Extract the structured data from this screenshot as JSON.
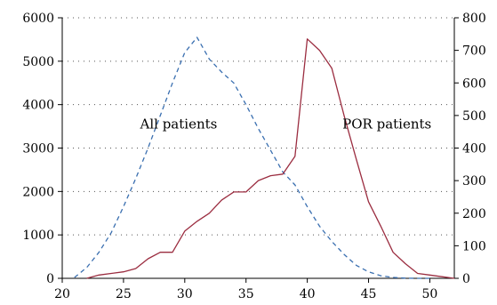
{
  "chart_data": {
    "type": "line",
    "xlim": [
      20,
      52
    ],
    "xticks": [
      20,
      25,
      30,
      35,
      40,
      45,
      50
    ],
    "left_axis": {
      "ylim": [
        0,
        6000
      ],
      "ticks": [
        0,
        1000,
        2000,
        3000,
        4000,
        5000,
        6000
      ]
    },
    "right_axis": {
      "ylim": [
        0,
        800
      ],
      "ticks": [
        0,
        100,
        200,
        300,
        400,
        500,
        600,
        700,
        800
      ]
    },
    "grid": "horizontal dotted",
    "series": [
      {
        "name": "All patients",
        "axis": "left",
        "style": "dashed",
        "color": "#3a6fb0",
        "x": [
          21,
          22,
          23,
          24,
          25,
          26,
          27,
          28,
          29,
          30,
          31,
          32,
          33,
          34,
          35,
          36,
          37,
          38,
          39,
          40,
          41,
          42,
          43,
          44,
          45,
          46,
          47,
          48,
          49,
          50
        ],
        "y": [
          20,
          250,
          600,
          1050,
          1650,
          2300,
          3000,
          3750,
          4500,
          5200,
          5550,
          5050,
          4750,
          4500,
          4000,
          3450,
          2950,
          2450,
          2150,
          1650,
          1200,
          850,
          550,
          300,
          150,
          60,
          20,
          5,
          0,
          0
        ]
      },
      {
        "name": "POR patients",
        "axis": "right",
        "style": "solid",
        "color": "#9b2d40",
        "x": [
          22,
          23,
          24,
          25,
          26,
          27,
          28,
          29,
          30,
          31,
          32,
          33,
          34,
          35,
          36,
          37,
          38,
          39,
          40,
          41,
          42,
          43,
          44,
          45,
          46,
          47,
          48,
          49,
          50,
          51,
          52
        ],
        "y": [
          0,
          10,
          15,
          20,
          30,
          60,
          80,
          80,
          145,
          175,
          200,
          240,
          265,
          265,
          300,
          315,
          320,
          375,
          735,
          700,
          645,
          500,
          365,
          235,
          160,
          80,
          45,
          15,
          10,
          5,
          0
        ]
      }
    ],
    "annotations": [
      {
        "text": "All patients",
        "x": 29.5,
        "y_axis": "left",
        "y": 3450
      },
      {
        "text": "POR patients",
        "x": 46.5,
        "y_axis": "right",
        "y": 460
      }
    ]
  }
}
